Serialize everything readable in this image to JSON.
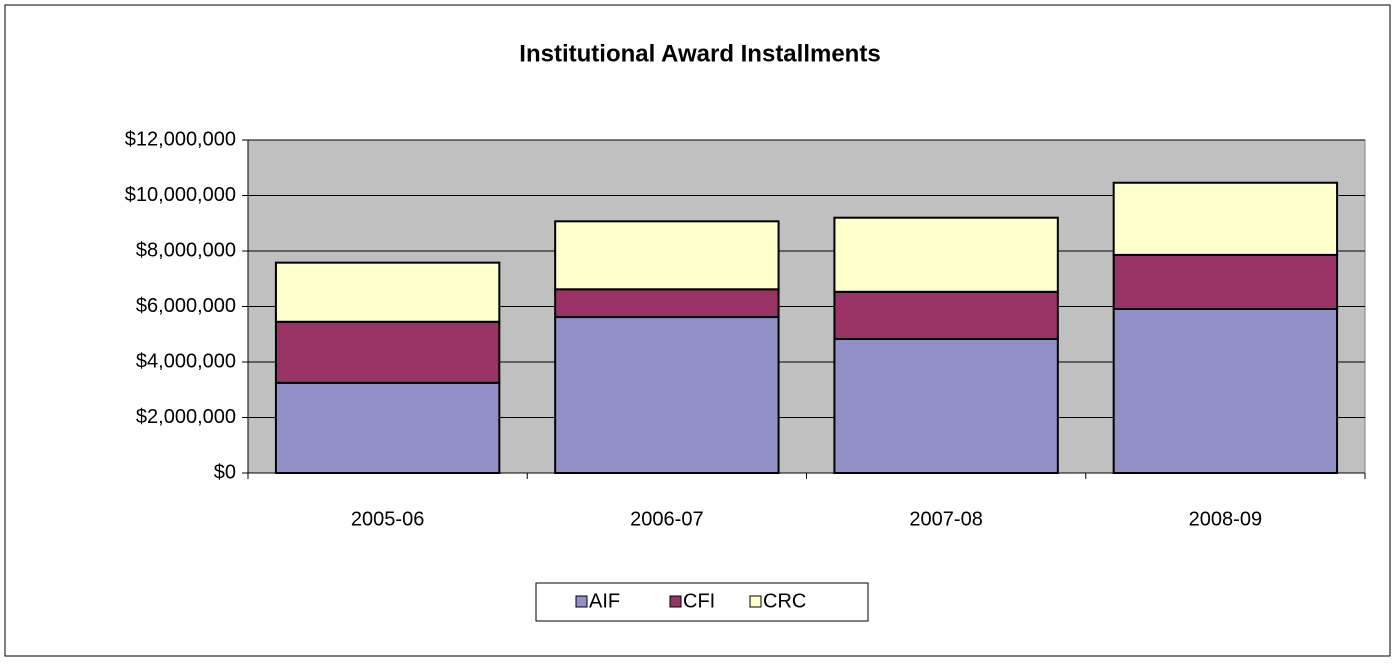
{
  "chart_data": {
    "type": "bar",
    "stacked": true,
    "title": "Institutional Award Installments",
    "categories": [
      "2005-06",
      "2006-07",
      "2007-08",
      "2008-09"
    ],
    "series": [
      {
        "name": "AIF",
        "color": "#9191c8",
        "values": [
          3250000,
          5620000,
          4830000,
          5910000
        ]
      },
      {
        "name": "CFI",
        "color": "#993366",
        "values": [
          2200000,
          1000000,
          1700000,
          1950000
        ]
      },
      {
        "name": "CRC",
        "color": "#ffffcc",
        "values": [
          2130000,
          2450000,
          2670000,
          2600000
        ]
      }
    ],
    "ylim": [
      0,
      12000000
    ],
    "yticks": [
      {
        "value": 0,
        "label": "$0"
      },
      {
        "value": 2000000,
        "label": "$2,000,000"
      },
      {
        "value": 4000000,
        "label": "$4,000,000"
      },
      {
        "value": 6000000,
        "label": "$6,000,000"
      },
      {
        "value": 8000000,
        "label": "$8,000,000"
      },
      {
        "value": 10000000,
        "label": "$10,000,000"
      },
      {
        "value": 12000000,
        "label": "$12,000,000"
      }
    ],
    "grid": true,
    "legend": "bottom"
  }
}
